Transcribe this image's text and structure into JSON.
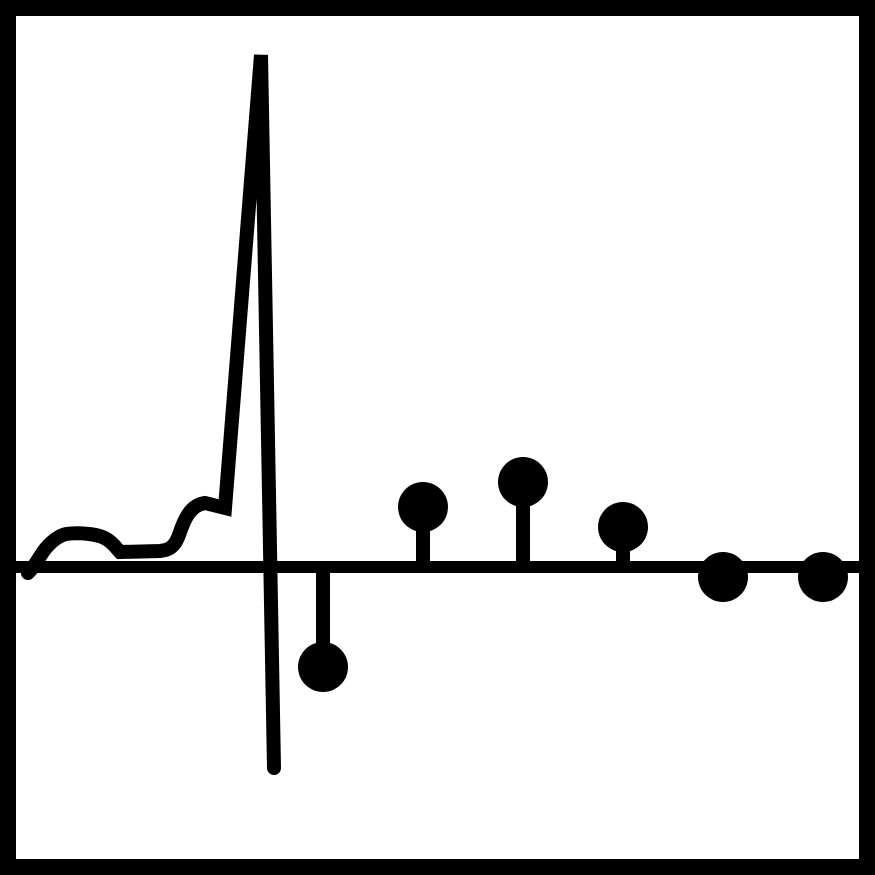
{
  "icon": {
    "name": "signal-waveform-stem-plot-icon",
    "colors": {
      "stroke": "#000000",
      "background": "#ffffff"
    },
    "stem_samples": [
      {
        "index": 1,
        "value": -1.0
      },
      {
        "index": 2,
        "value": 0.6
      },
      {
        "index": 3,
        "value": 0.85
      },
      {
        "index": 4,
        "value": 0.4
      },
      {
        "index": 5,
        "value": -0.1
      },
      {
        "index": 6,
        "value": -0.1
      }
    ]
  }
}
